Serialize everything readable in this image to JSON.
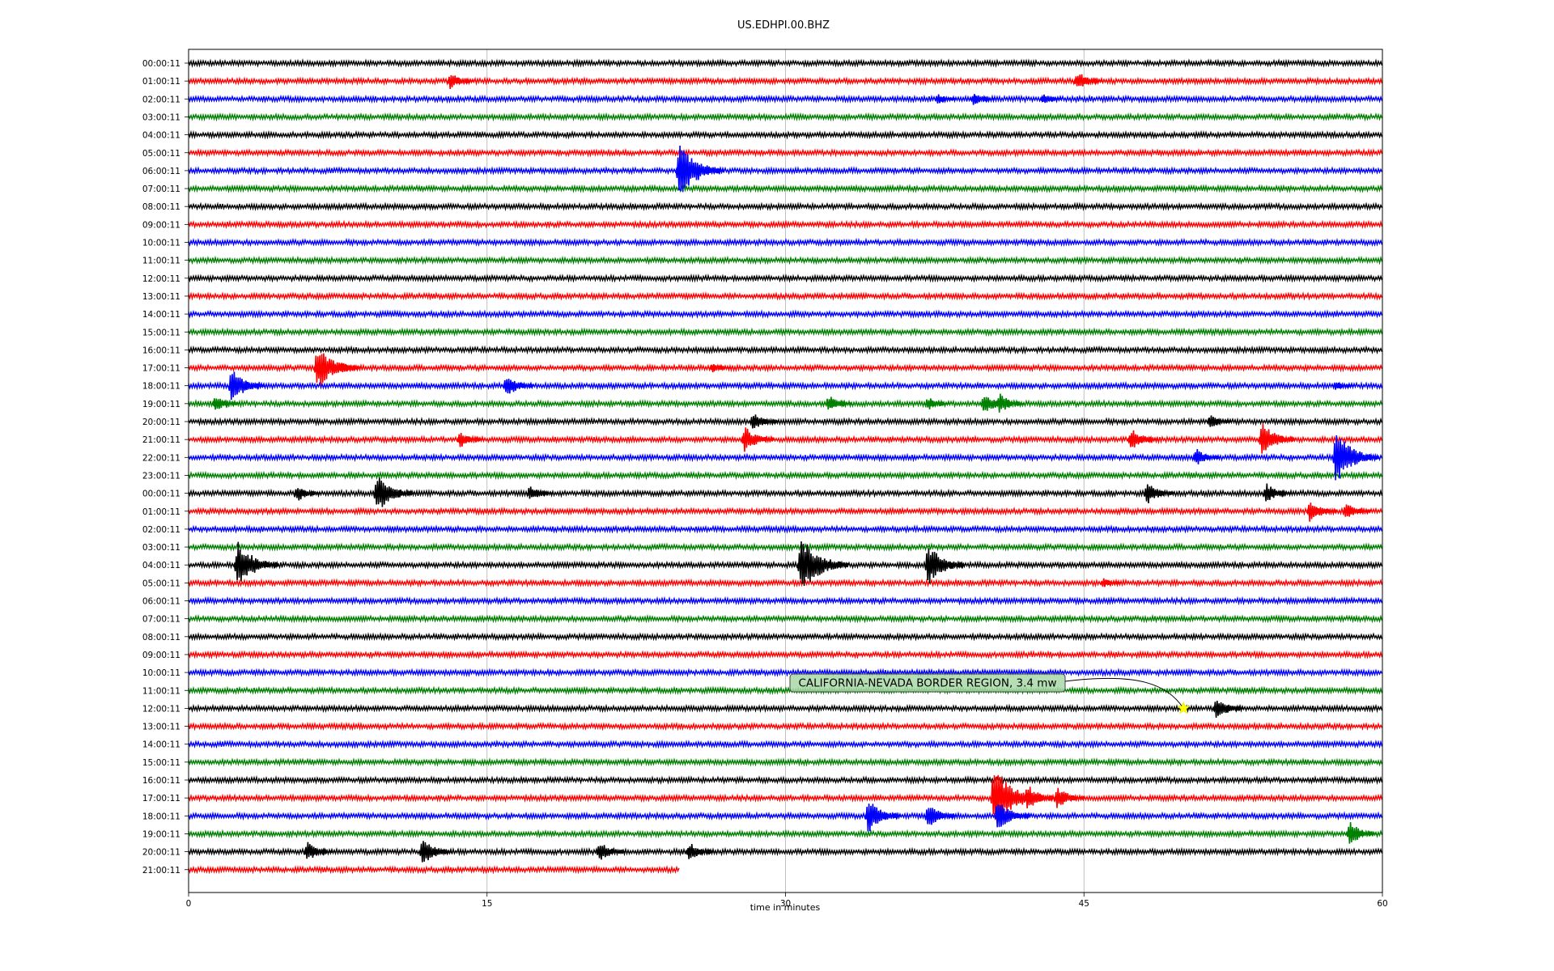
{
  "chart_data": {
    "type": "line",
    "title": "US.EDHPI.00.BHZ",
    "xlabel": "time in minutes",
    "ylabel": "",
    "xlim": [
      0,
      60
    ],
    "x_ticks": [
      "0",
      "15",
      "30",
      "45",
      "60"
    ],
    "x_tick_values": [
      0,
      15,
      30,
      45,
      60
    ],
    "grid": "vertical at x ticks",
    "legend": "none",
    "series_colors": [
      "#000000",
      "#ff0000",
      "#0000ff",
      "#008000"
    ],
    "row_labels": [
      "00:00:11",
      "01:00:11",
      "02:00:11",
      "03:00:11",
      "04:00:11",
      "05:00:11",
      "06:00:11",
      "07:00:11",
      "08:00:11",
      "09:00:11",
      "10:00:11",
      "11:00:11",
      "12:00:11",
      "13:00:11",
      "14:00:11",
      "15:00:11",
      "16:00:11",
      "17:00:11",
      "18:00:11",
      "19:00:11",
      "20:00:11",
      "21:00:11",
      "22:00:11",
      "23:00:11",
      "00:00:11",
      "01:00:11",
      "02:00:11",
      "03:00:11",
      "04:00:11",
      "05:00:11",
      "06:00:11",
      "07:00:11",
      "08:00:11",
      "09:00:11",
      "10:00:11",
      "11:00:11",
      "12:00:11",
      "13:00:11",
      "14:00:11",
      "15:00:11",
      "16:00:11",
      "17:00:11",
      "18:00:11",
      "19:00:11",
      "20:00:11",
      "21:00:11"
    ],
    "last_row_end_minute": 24.7,
    "events": [
      {
        "row": 1,
        "minute": 13.0,
        "amp": 0.5
      },
      {
        "row": 1,
        "minute": 44.5,
        "amp": 0.6
      },
      {
        "row": 2,
        "minute": 37.5,
        "amp": 0.3
      },
      {
        "row": 2,
        "minute": 39.3,
        "amp": 0.4
      },
      {
        "row": 2,
        "minute": 42.8,
        "amp": 0.3
      },
      {
        "row": 6,
        "minute": 24.5,
        "amp": 1.6
      },
      {
        "row": 17,
        "minute": 6.3,
        "amp": 1.3
      },
      {
        "row": 17,
        "minute": 7.5,
        "amp": 0.4
      },
      {
        "row": 17,
        "minute": 26.2,
        "amp": 0.3
      },
      {
        "row": 18,
        "minute": 2.0,
        "amp": 1.0
      },
      {
        "row": 18,
        "minute": 15.8,
        "amp": 0.7
      },
      {
        "row": 18,
        "minute": 57.5,
        "amp": 0.3
      },
      {
        "row": 19,
        "minute": 1.2,
        "amp": 0.5
      },
      {
        "row": 19,
        "minute": 32.0,
        "amp": 0.5
      },
      {
        "row": 19,
        "minute": 37.0,
        "amp": 0.4
      },
      {
        "row": 19,
        "minute": 39.8,
        "amp": 0.7
      },
      {
        "row": 19,
        "minute": 40.6,
        "amp": 0.6
      },
      {
        "row": 20,
        "minute": 28.2,
        "amp": 0.6
      },
      {
        "row": 20,
        "minute": 51.2,
        "amp": 0.4
      },
      {
        "row": 21,
        "minute": 13.5,
        "amp": 0.5
      },
      {
        "row": 21,
        "minute": 27.8,
        "amp": 0.8
      },
      {
        "row": 21,
        "minute": 47.2,
        "amp": 0.7
      },
      {
        "row": 21,
        "minute": 53.8,
        "amp": 1.0
      },
      {
        "row": 22,
        "minute": 50.5,
        "amp": 0.5
      },
      {
        "row": 22,
        "minute": 57.5,
        "amp": 1.5
      },
      {
        "row": 24,
        "minute": 5.3,
        "amp": 0.5
      },
      {
        "row": 24,
        "minute": 9.3,
        "amp": 1.2
      },
      {
        "row": 24,
        "minute": 17.0,
        "amp": 0.5
      },
      {
        "row": 24,
        "minute": 48.0,
        "amp": 0.7
      },
      {
        "row": 24,
        "minute": 54.0,
        "amp": 0.6
      },
      {
        "row": 25,
        "minute": 56.2,
        "amp": 0.7
      },
      {
        "row": 25,
        "minute": 58.0,
        "amp": 0.6
      },
      {
        "row": 28,
        "minute": 2.3,
        "amp": 1.4
      },
      {
        "row": 28,
        "minute": 30.6,
        "amp": 1.7
      },
      {
        "row": 28,
        "minute": 37.0,
        "amp": 1.2
      },
      {
        "row": 29,
        "minute": 45.8,
        "amp": 0.3
      },
      {
        "row": 36,
        "minute": 51.5,
        "amp": 0.7
      },
      {
        "row": 41,
        "minute": 40.3,
        "amp": 1.8
      },
      {
        "row": 41,
        "minute": 42.0,
        "amp": 0.8
      },
      {
        "row": 41,
        "minute": 43.5,
        "amp": 0.7
      },
      {
        "row": 42,
        "minute": 34.0,
        "amp": 1.0
      },
      {
        "row": 42,
        "minute": 37.0,
        "amp": 0.8
      },
      {
        "row": 42,
        "minute": 40.5,
        "amp": 1.0
      },
      {
        "row": 43,
        "minute": 58.2,
        "amp": 0.7
      },
      {
        "row": 44,
        "minute": 5.8,
        "amp": 0.6
      },
      {
        "row": 44,
        "minute": 11.6,
        "amp": 0.8
      },
      {
        "row": 44,
        "minute": 20.5,
        "amp": 0.6
      },
      {
        "row": 44,
        "minute": 25.0,
        "amp": 0.6
      }
    ],
    "annotations": [
      {
        "text": "CALIFORNIA-NEVADA BORDER REGION, 3.4 mw",
        "row": 36,
        "minute": 50.0,
        "marker": "star",
        "marker_color": "#ffff00"
      }
    ]
  }
}
